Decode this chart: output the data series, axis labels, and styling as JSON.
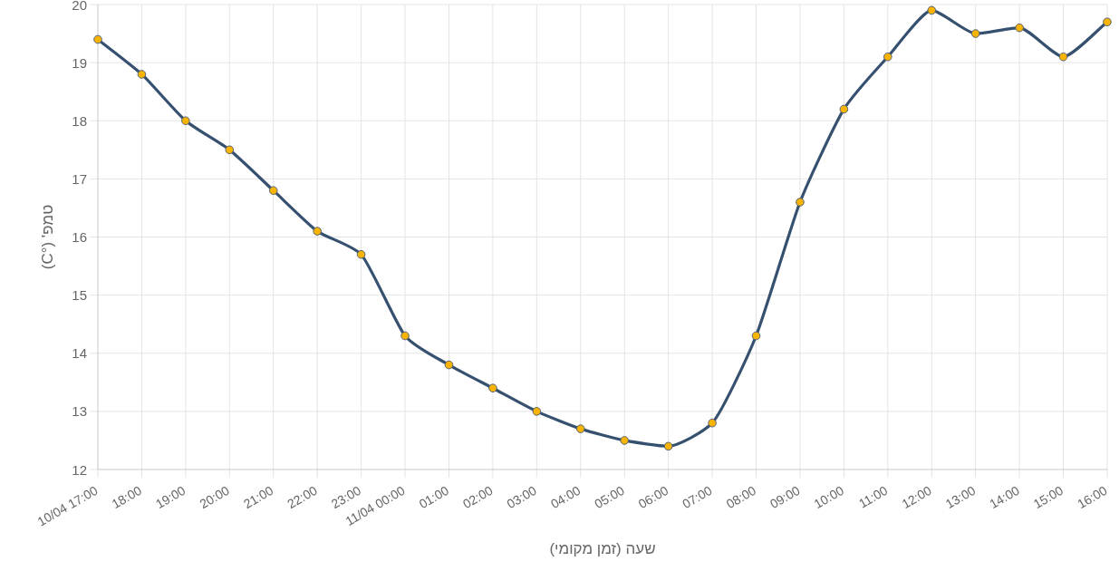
{
  "chart_data": {
    "type": "line",
    "xlabel": "שעה (זמן מקומי)",
    "ylabel": "טמפ' (°C)",
    "categories": [
      "10/04 17:00",
      "18:00",
      "19:00",
      "20:00",
      "21:00",
      "22:00",
      "23:00",
      "11/04 00:00",
      "01:00",
      "02:00",
      "03:00",
      "04:00",
      "05:00",
      "06:00",
      "07:00",
      "08:00",
      "09:00",
      "10:00",
      "11:00",
      "12:00",
      "13:00",
      "14:00",
      "15:00",
      "16:00"
    ],
    "series": [
      {
        "color": "#36506f",
        "values": [
          19.4,
          18.8,
          18.0,
          17.5,
          16.8,
          16.1,
          15.7,
          14.3,
          13.8,
          13.4,
          13.0,
          12.7,
          12.5,
          12.4,
          12.8,
          14.3,
          16.6,
          18.2,
          19.1,
          19.9,
          19.5,
          19.6,
          19.1,
          19.7
        ]
      }
    ],
    "ylim": [
      12,
      20
    ],
    "yticks": [
      12,
      13,
      14,
      15,
      16,
      17,
      18,
      19,
      20
    ],
    "grid": true,
    "marker": "circle",
    "line_style": "solid"
  }
}
